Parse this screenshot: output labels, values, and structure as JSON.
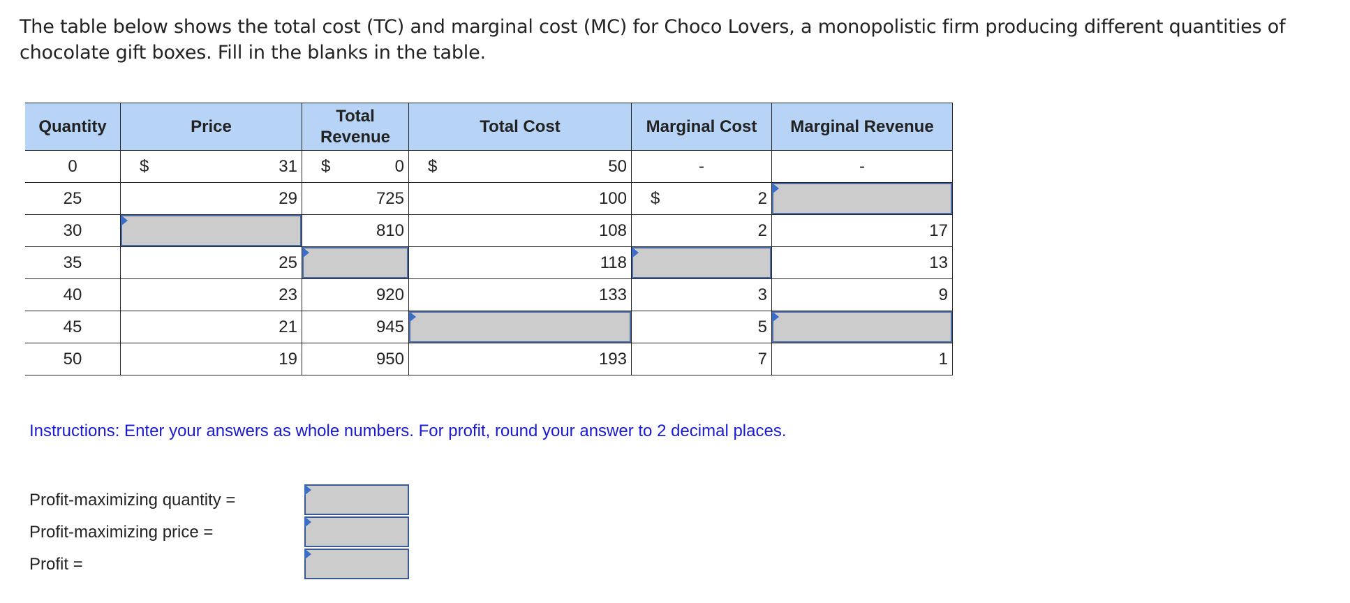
{
  "intro": "The table below shows the total cost (TC) and marginal cost (MC) for Choco Lovers, a monopolistic firm producing different quantities of chocolate gift boxes. Fill in the blanks in the table.",
  "table": {
    "headers": {
      "quantity": "Quantity",
      "price": "Price",
      "total_revenue_line1": "Total",
      "total_revenue_line2": "Revenue",
      "total_cost": "Total Cost",
      "marginal_cost": "Marginal Cost",
      "marginal_revenue": "Marginal Revenue"
    },
    "currency": "$",
    "rows": [
      {
        "quantity": "0",
        "price": "31",
        "total_revenue": "0",
        "total_cost": "50",
        "marginal_cost": "-",
        "marginal_revenue": "-"
      },
      {
        "quantity": "25",
        "price": "29",
        "total_revenue": "725",
        "total_cost": "100",
        "marginal_cost": "2",
        "marginal_revenue": ""
      },
      {
        "quantity": "30",
        "price": "",
        "total_revenue": "810",
        "total_cost": "108",
        "marginal_cost": "2",
        "marginal_revenue": "17"
      },
      {
        "quantity": "35",
        "price": "25",
        "total_revenue": "",
        "total_cost": "118",
        "marginal_cost": "",
        "marginal_revenue": "13"
      },
      {
        "quantity": "40",
        "price": "23",
        "total_revenue": "920",
        "total_cost": "133",
        "marginal_cost": "3",
        "marginal_revenue": "9"
      },
      {
        "quantity": "45",
        "price": "21",
        "total_revenue": "945",
        "total_cost": "",
        "marginal_cost": "5",
        "marginal_revenue": ""
      },
      {
        "quantity": "50",
        "price": "19",
        "total_revenue": "950",
        "total_cost": "193",
        "marginal_cost": "7",
        "marginal_revenue": "1"
      }
    ]
  },
  "instructions": "Instructions: Enter your answers as whole numbers. For profit, round your answer to 2 decimal places.",
  "answers": {
    "quantity_label": "Profit-maximizing quantity =",
    "price_label": "Profit-maximizing price =",
    "profit_label": "Profit ="
  },
  "colors": {
    "header_bg": "#b7d4f7",
    "input_bg": "#cccccc",
    "input_marker": "#3b6ec9",
    "instructions_text": "#1a1ad6"
  }
}
